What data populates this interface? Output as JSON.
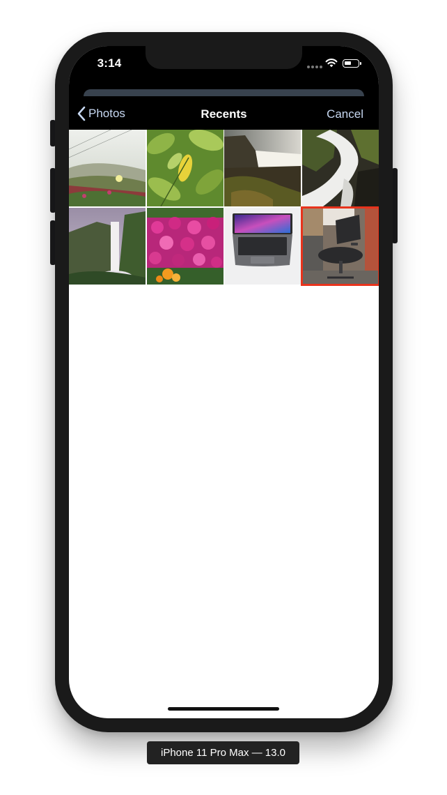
{
  "status_bar": {
    "time": "3:14",
    "battery_level": 0.55,
    "icons": [
      "cellular-dots-icon",
      "wifi-icon",
      "battery-icon"
    ]
  },
  "nav": {
    "back_label": "Photos",
    "back_icon": "chevron-left-icon",
    "title": "Recents",
    "cancel_label": "Cancel"
  },
  "photos": [
    {
      "subject": "beach dune with ice plant flowers",
      "selected": false
    },
    {
      "subject": "yellow leaf on green foliage",
      "selected": false
    },
    {
      "subject": "waterfall over cliff at dusk",
      "selected": false
    },
    {
      "subject": "long exposure waterfall on rocks",
      "selected": false
    },
    {
      "subject": "tall waterfall in green valley",
      "selected": false
    },
    {
      "subject": "magenta daisy flowers",
      "selected": false
    },
    {
      "subject": "laptop on light background",
      "selected": false
    },
    {
      "subject": "office chair in cubicle",
      "selected": true
    }
  ],
  "colors": {
    "accent": "#c7d8f2",
    "selection": "#e8331c",
    "nav_background": "#000000"
  },
  "device_label": "iPhone 11 Pro Max — 13.0"
}
